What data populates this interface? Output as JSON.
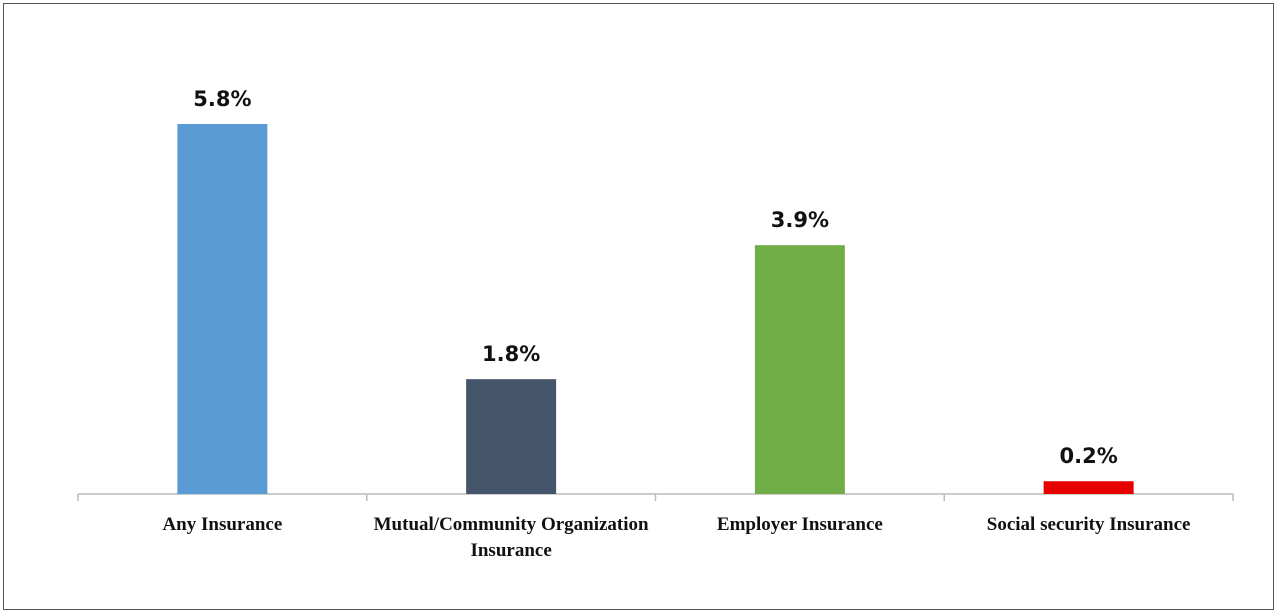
{
  "chart_data": {
    "type": "bar",
    "categories": [
      "Any Insurance",
      "Mutual/Community Organization Insurance",
      "Employer Insurance",
      "Social security Insurance"
    ],
    "values": [
      5.8,
      1.8,
      3.9,
      0.2
    ],
    "value_labels": [
      "5.8%",
      "1.8%",
      "3.9%",
      "0.2%"
    ],
    "colors": [
      "#5b9bd5",
      "#44546a",
      "#70ad47",
      "#e60000"
    ]
  }
}
